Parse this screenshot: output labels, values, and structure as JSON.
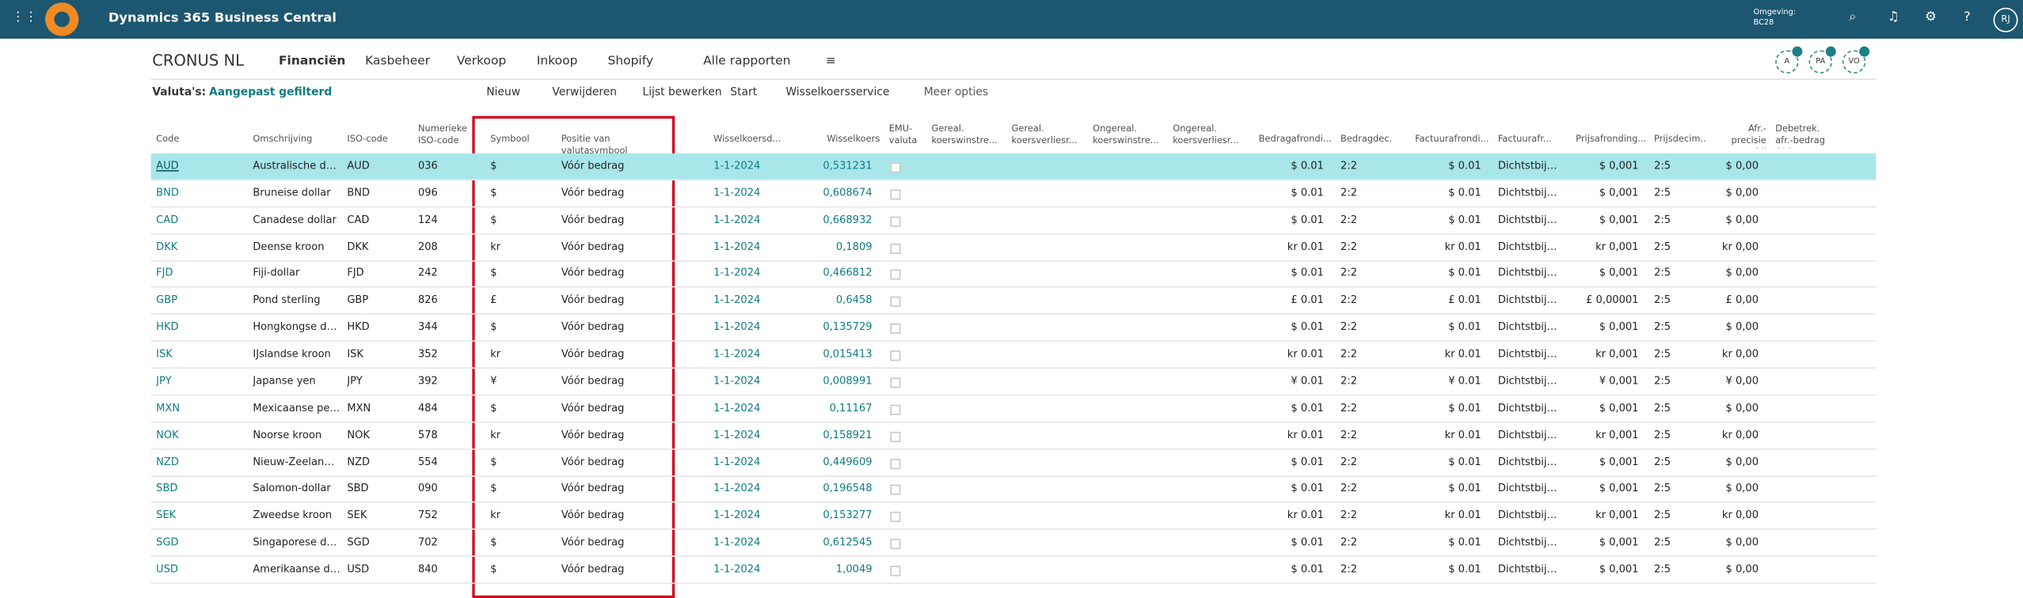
{
  "app": {
    "title": "Dynamics 365 Business Central",
    "env_label": "Omgeving:",
    "env": "BC28",
    "user": "RJ"
  },
  "nav": {
    "company": "CRONUS NL",
    "items": [
      "Financiën",
      "Kasbeheer",
      "Verkoop",
      "Inkoop",
      "Shopify"
    ],
    "reports": "Alle rapporten",
    "avatars": [
      "A",
      "PA",
      "VO"
    ]
  },
  "actions": {
    "filter_label": "Valuta's:",
    "filter": "Aangepast gefilterd",
    "buttons": [
      "Nieuw",
      "Verwijderen",
      "Lijst bewerken",
      "Start",
      "Wisselkoersservice"
    ],
    "more": "Meer opties"
  },
  "table": {
    "headers": [
      "Code",
      "Omschrijving",
      "ISO-code",
      "Numerieke ISO-code",
      "Symbool",
      "Positie van valutasymbool",
      "Wisselkoersd...",
      "Wisselkoers",
      "EMU-valuta",
      "Gereal. koerswinstre...",
      "Gereal. koersverliesr...",
      "Ongereal. koerswinstre...",
      "Ongereal. koersverliesr...",
      "Bedragafrondi...",
      "Bedragdec...",
      "Factuurafrondi...",
      "Factuurafr...",
      "Prijsafronding...",
      "Prijsdecim...",
      "Afr.-precisie bij vereffenen",
      "Debetrek. afr.-bedrag (LV)"
    ],
    "rows": [
      {
        "code": "AUD",
        "name": "Australische doll...",
        "iso": "AUD",
        "num": "036",
        "symbol": "$",
        "position": "Vóór bedrag",
        "date": "1-1-2024",
        "rate": "0,531231",
        "amt_round": "$ 0.01",
        "amt_dec": "2:2",
        "inv_round": "$ 0.01",
        "inv_type": "Dichtstbijzij...",
        "price_round": "$ 0,001",
        "price_dec": "2:5",
        "appl_prec": "$ 0,00"
      },
      {
        "code": "BND",
        "name": "Bruneise dollar",
        "iso": "BND",
        "num": "096",
        "symbol": "$",
        "position": "Vóór bedrag",
        "date": "1-1-2024",
        "rate": "0,608674",
        "amt_round": "$ 0.01",
        "amt_dec": "2:2",
        "inv_round": "$ 0.01",
        "inv_type": "Dichtstbijzij...",
        "price_round": "$ 0,001",
        "price_dec": "2:5",
        "appl_prec": "$ 0,00"
      },
      {
        "code": "CAD",
        "name": "Canadese dollar",
        "iso": "CAD",
        "num": "124",
        "symbol": "$",
        "position": "Vóór bedrag",
        "date": "1-1-2024",
        "rate": "0,668932",
        "amt_round": "$ 0.01",
        "amt_dec": "2:2",
        "inv_round": "$ 0.01",
        "inv_type": "Dichtstbijzij...",
        "price_round": "$ 0,001",
        "price_dec": "2:5",
        "appl_prec": "$ 0,00"
      },
      {
        "code": "DKK",
        "name": "Deense kroon",
        "iso": "DKK",
        "num": "208",
        "symbol": "kr",
        "position": "Vóór bedrag",
        "date": "1-1-2024",
        "rate": "0,1809",
        "amt_round": "kr 0.01",
        "amt_dec": "2:2",
        "inv_round": "kr 0.01",
        "inv_type": "Dichtstbijzij...",
        "price_round": "kr 0,001",
        "price_dec": "2:5",
        "appl_prec": "kr 0,00"
      },
      {
        "code": "FJD",
        "name": "Fiji-dollar",
        "iso": "FJD",
        "num": "242",
        "symbol": "$",
        "position": "Vóór bedrag",
        "date": "1-1-2024",
        "rate": "0,466812",
        "amt_round": "$ 0.01",
        "amt_dec": "2:2",
        "inv_round": "$ 0.01",
        "inv_type": "Dichtstbijzij...",
        "price_round": "$ 0,001",
        "price_dec": "2:5",
        "appl_prec": "$ 0,00"
      },
      {
        "code": "GBP",
        "name": "Pond sterling",
        "iso": "GBP",
        "num": "826",
        "symbol": "£",
        "position": "Vóór bedrag",
        "date": "1-1-2024",
        "rate": "0,6458",
        "amt_round": "£ 0.01",
        "amt_dec": "2:2",
        "inv_round": "£ 0.01",
        "inv_type": "Dichtstbijzij...",
        "price_round": "£ 0,00001",
        "price_dec": "2:5",
        "appl_prec": "£ 0,00"
      },
      {
        "code": "HKD",
        "name": "Hongkongse dol...",
        "iso": "HKD",
        "num": "344",
        "symbol": "$",
        "position": "Vóór bedrag",
        "date": "1-1-2024",
        "rate": "0,135729",
        "amt_round": "$ 0.01",
        "amt_dec": "2:2",
        "inv_round": "$ 0.01",
        "inv_type": "Dichtstbijzij...",
        "price_round": "$ 0,001",
        "price_dec": "2:5",
        "appl_prec": "$ 0,00"
      },
      {
        "code": "ISK",
        "name": "IJslandse kroon",
        "iso": "ISK",
        "num": "352",
        "symbol": "kr",
        "position": "Vóór bedrag",
        "date": "1-1-2024",
        "rate": "0,015413",
        "amt_round": "kr 0.01",
        "amt_dec": "2:2",
        "inv_round": "kr 0.01",
        "inv_type": "Dichtstbijzij...",
        "price_round": "kr 0,001",
        "price_dec": "2:5",
        "appl_prec": "kr 0,00"
      },
      {
        "code": "JPY",
        "name": "Japanse yen",
        "iso": "JPY",
        "num": "392",
        "symbol": "¥",
        "position": "Vóór bedrag",
        "date": "1-1-2024",
        "rate": "0,008991",
        "amt_round": "¥ 0.01",
        "amt_dec": "2:2",
        "inv_round": "¥ 0.01",
        "inv_type": "Dichtstbijzij...",
        "price_round": "¥ 0,001",
        "price_dec": "2:5",
        "appl_prec": "¥ 0,00"
      },
      {
        "code": "MXN",
        "name": "Mexicaanse peso",
        "iso": "MXN",
        "num": "484",
        "symbol": "$",
        "position": "Vóór bedrag",
        "date": "1-1-2024",
        "rate": "0,11167",
        "amt_round": "$ 0.01",
        "amt_dec": "2:2",
        "inv_round": "$ 0.01",
        "inv_type": "Dichtstbijzij...",
        "price_round": "$ 0,001",
        "price_dec": "2:5",
        "appl_prec": "$ 0,00"
      },
      {
        "code": "NOK",
        "name": "Noorse kroon",
        "iso": "NOK",
        "num": "578",
        "symbol": "kr",
        "position": "Vóór bedrag",
        "date": "1-1-2024",
        "rate": "0,158921",
        "amt_round": "kr 0.01",
        "amt_dec": "2:2",
        "inv_round": "kr 0.01",
        "inv_type": "Dichtstbijzij...",
        "price_round": "kr 0,001",
        "price_dec": "2:5",
        "appl_prec": "kr 0,00"
      },
      {
        "code": "NZD",
        "name": "Nieuw-Zeelands...",
        "iso": "NZD",
        "num": "554",
        "symbol": "$",
        "position": "Vóór bedrag",
        "date": "1-1-2024",
        "rate": "0,449609",
        "amt_round": "$ 0.01",
        "amt_dec": "2:2",
        "inv_round": "$ 0.01",
        "inv_type": "Dichtstbijzij...",
        "price_round": "$ 0,001",
        "price_dec": "2:5",
        "appl_prec": "$ 0,00"
      },
      {
        "code": "SBD",
        "name": "Salomon-dollar",
        "iso": "SBD",
        "num": "090",
        "symbol": "$",
        "position": "Vóór bedrag",
        "date": "1-1-2024",
        "rate": "0,196548",
        "amt_round": "$ 0.01",
        "amt_dec": "2:2",
        "inv_round": "$ 0.01",
        "inv_type": "Dichtstbijzij...",
        "price_round": "$ 0,001",
        "price_dec": "2:5",
        "appl_prec": "$ 0,00"
      },
      {
        "code": "SEK",
        "name": "Zweedse kroon",
        "iso": "SEK",
        "num": "752",
        "symbol": "kr",
        "position": "Vóór bedrag",
        "date": "1-1-2024",
        "rate": "0,153277",
        "amt_round": "kr 0.01",
        "amt_dec": "2:2",
        "inv_round": "kr 0.01",
        "inv_type": "Dichtstbijzij...",
        "price_round": "kr 0,001",
        "price_dec": "2:5",
        "appl_prec": "kr 0,00"
      },
      {
        "code": "SGD",
        "name": "Singaporese dol...",
        "iso": "SGD",
        "num": "702",
        "symbol": "$",
        "position": "Vóór bedrag",
        "date": "1-1-2024",
        "rate": "0,612545",
        "amt_round": "$ 0.01",
        "amt_dec": "2:2",
        "inv_round": "$ 0.01",
        "inv_type": "Dichtstbijzij...",
        "price_round": "$ 0,001",
        "price_dec": "2:5",
        "appl_prec": "$ 0,00"
      },
      {
        "code": "USD",
        "name": "Amerikaanse dol...",
        "iso": "USD",
        "num": "840",
        "symbol": "$",
        "position": "Vóór bedrag",
        "date": "1-1-2024",
        "rate": "1,0049",
        "amt_round": "$ 0.01",
        "amt_dec": "2:2",
        "inv_round": "$ 0.01",
        "inv_type": "Dichtstbijzij...",
        "price_round": "$ 0,001",
        "price_dec": "2:5",
        "appl_prec": "$ 0,00"
      }
    ]
  }
}
